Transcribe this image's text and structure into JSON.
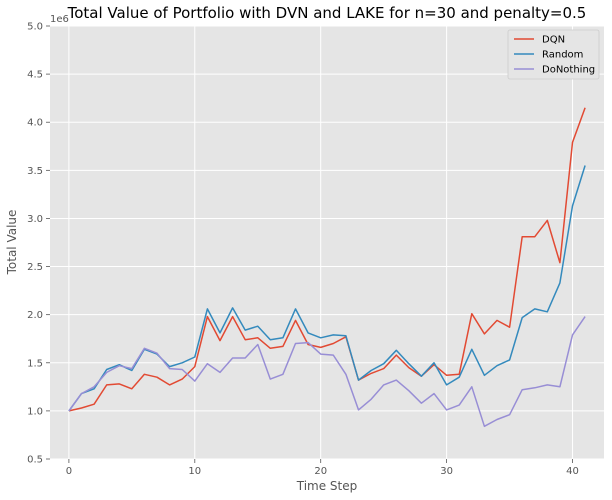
{
  "chart_data": {
    "type": "line",
    "title": "Total Value of Portfolio with DVN and LAKE for n=30 and penalty=0.5",
    "xlabel": "Time Step",
    "ylabel": "Total Value",
    "y_offset_label": "1e6",
    "xlim": [
      -1.5,
      42.5
    ],
    "ylim": [
      0.5,
      5.0
    ],
    "x_ticks": [
      0,
      10,
      20,
      30,
      40
    ],
    "x_tick_labels": [
      "0",
      "10",
      "20",
      "30",
      "40"
    ],
    "y_ticks": [
      0.5,
      1.0,
      1.5,
      2.0,
      2.5,
      3.0,
      3.5,
      4.0,
      4.5,
      5.0
    ],
    "y_tick_labels": [
      "0.5",
      "1.0",
      "1.5",
      "2.0",
      "2.5",
      "3.0",
      "3.5",
      "4.0",
      "4.5",
      "5.0"
    ],
    "grid": true,
    "legend_position": "top-right",
    "x": [
      0,
      1,
      2,
      3,
      4,
      5,
      6,
      7,
      8,
      9,
      10,
      11,
      12,
      13,
      14,
      15,
      16,
      17,
      18,
      19,
      20,
      21,
      22,
      23,
      24,
      25,
      26,
      27,
      28,
      29,
      30,
      31,
      32,
      33,
      34,
      35,
      36,
      37,
      38,
      39,
      40,
      41
    ],
    "series": [
      {
        "name": "DQN",
        "color": "#E24A33",
        "values": [
          1.0,
          1.03,
          1.07,
          1.27,
          1.28,
          1.23,
          1.38,
          1.35,
          1.27,
          1.33,
          1.46,
          1.98,
          1.73,
          1.98,
          1.74,
          1.76,
          1.65,
          1.67,
          1.94,
          1.69,
          1.66,
          1.7,
          1.77,
          1.32,
          1.39,
          1.44,
          1.58,
          1.45,
          1.36,
          1.48,
          1.37,
          1.38,
          2.01,
          1.8,
          1.94,
          1.87,
          2.81,
          2.81,
          2.98,
          2.54,
          3.79,
          4.15
        ]
      },
      {
        "name": "Random",
        "color": "#348ABD",
        "values": [
          1.0,
          1.18,
          1.23,
          1.43,
          1.48,
          1.42,
          1.64,
          1.59,
          1.46,
          1.5,
          1.56,
          2.06,
          1.81,
          2.07,
          1.84,
          1.88,
          1.74,
          1.76,
          2.06,
          1.81,
          1.76,
          1.79,
          1.78,
          1.32,
          1.42,
          1.49,
          1.63,
          1.49,
          1.36,
          1.5,
          1.27,
          1.35,
          1.64,
          1.37,
          1.47,
          1.53,
          1.97,
          2.06,
          2.03,
          2.33,
          3.13,
          3.55
        ]
      },
      {
        "name": "DoNothing",
        "color": "#988ED5",
        "values": [
          1.0,
          1.18,
          1.25,
          1.4,
          1.47,
          1.44,
          1.65,
          1.6,
          1.44,
          1.43,
          1.31,
          1.49,
          1.4,
          1.55,
          1.55,
          1.69,
          1.33,
          1.38,
          1.7,
          1.71,
          1.59,
          1.58,
          1.38,
          1.01,
          1.12,
          1.27,
          1.32,
          1.21,
          1.08,
          1.18,
          1.01,
          1.06,
          1.25,
          0.84,
          0.91,
          0.96,
          1.22,
          1.24,
          1.27,
          1.25,
          1.79,
          1.98
        ]
      }
    ]
  }
}
